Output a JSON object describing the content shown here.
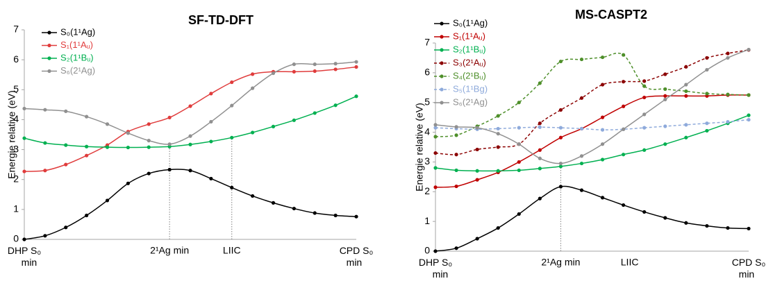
{
  "chart_data": [
    {
      "type": "line",
      "title": "SF-TD-DFT",
      "ylabel": "Energie relative (eV)",
      "x": [
        0,
        1,
        2,
        3,
        4,
        5,
        6,
        7,
        8,
        9,
        10,
        11,
        12,
        13,
        14,
        15,
        16
      ],
      "xlim": [
        0,
        16
      ],
      "xticks": [
        {
          "value": 0,
          "label": "DHP S₀ min"
        },
        {
          "value": 7,
          "label": "2¹Ag min"
        },
        {
          "value": 10,
          "label": "LIIC"
        },
        {
          "value": 16,
          "label": "CPD S₀ min"
        }
      ],
      "ylim": [
        0,
        7
      ],
      "yticks": [
        0,
        1,
        2,
        3,
        4,
        5,
        6,
        7
      ],
      "series": [
        {
          "name": "S₀(1¹Ag)",
          "color": "#000000",
          "dashed": false,
          "values": [
            0,
            0.12,
            0.4,
            0.8,
            1.3,
            1.87,
            2.2,
            2.33,
            2.3,
            2.03,
            1.73,
            1.45,
            1.22,
            1.03,
            0.88,
            0.8,
            0.76
          ]
        },
        {
          "name": "S₁(1¹Aᵤ)",
          "color": "#e03c3c",
          "dashed": false,
          "values": [
            2.27,
            2.3,
            2.5,
            2.8,
            3.15,
            3.6,
            3.85,
            4.07,
            4.45,
            4.87,
            5.25,
            5.52,
            5.6,
            5.6,
            5.62,
            5.68,
            5.76
          ]
        },
        {
          "name": "S₂(1¹Bᵤ)",
          "color": "#00b050",
          "dashed": false,
          "values": [
            3.38,
            3.22,
            3.15,
            3.1,
            3.08,
            3.07,
            3.08,
            3.1,
            3.17,
            3.27,
            3.4,
            3.57,
            3.77,
            3.98,
            4.22,
            4.48,
            4.78
          ]
        },
        {
          "name": "S₆(2¹Ag)",
          "color": "#909090",
          "dashed": false,
          "values": [
            4.37,
            4.33,
            4.28,
            4.1,
            3.85,
            3.55,
            3.3,
            3.18,
            3.45,
            3.93,
            4.47,
            5.05,
            5.55,
            5.85,
            5.85,
            5.87,
            5.93
          ]
        }
      ]
    },
    {
      "type": "line",
      "title": "MS-CASPT2",
      "ylabel": "Energie relative (eV)",
      "x": [
        0,
        1,
        2,
        3,
        4,
        5,
        6,
        7,
        8,
        9,
        10,
        11,
        12,
        13,
        14,
        15
      ],
      "xlim": [
        0,
        15
      ],
      "xticks": [
        {
          "value": 0,
          "label": "DHP S₀ min"
        },
        {
          "value": 6,
          "label": "2¹Ag min"
        },
        {
          "value": 9.3,
          "label": "LIIC"
        },
        {
          "value": 15,
          "label": "CPD S₀ min"
        }
      ],
      "ylim": [
        0,
        7
      ],
      "yticks": [
        0,
        1,
        2,
        3,
        4,
        5,
        6,
        7
      ],
      "series": [
        {
          "name": "S₀(1¹Ag)",
          "color": "#000000",
          "dashed": false,
          "values": [
            0,
            0.1,
            0.42,
            0.78,
            1.25,
            1.77,
            2.17,
            2.05,
            1.8,
            1.55,
            1.32,
            1.12,
            0.95,
            0.85,
            0.78,
            0.76
          ]
        },
        {
          "name": "S₁(1¹Aᵤ)",
          "color": "#c00000",
          "dashed": false,
          "values": [
            2.15,
            2.18,
            2.4,
            2.65,
            3.0,
            3.4,
            3.82,
            4.12,
            4.5,
            4.87,
            5.17,
            5.22,
            5.22,
            5.22,
            5.25,
            5.25
          ]
        },
        {
          "name": "S₂(1¹Bᵤ)",
          "color": "#00b050",
          "dashed": false,
          "values": [
            2.8,
            2.72,
            2.7,
            2.7,
            2.72,
            2.78,
            2.85,
            2.95,
            3.08,
            3.25,
            3.4,
            3.6,
            3.82,
            4.05,
            4.3,
            4.57
          ]
        },
        {
          "name": "S₃(2¹Aᵤ)",
          "color": "#8b0000",
          "dashed": true,
          "values": [
            3.3,
            3.25,
            3.42,
            3.5,
            3.6,
            4.3,
            4.75,
            5.15,
            5.6,
            5.7,
            5.72,
            5.95,
            6.2,
            6.5,
            6.65,
            6.77
          ]
        },
        {
          "name": "S₄(2¹Bᵤ)",
          "color": "#4e8f2a",
          "dashed": true,
          "values": [
            3.85,
            3.9,
            4.2,
            4.55,
            5.0,
            5.65,
            6.38,
            6.45,
            6.52,
            6.6,
            5.55,
            5.45,
            5.38,
            5.3,
            5.27,
            5.25
          ]
        },
        {
          "name": "S₅(1¹Bg)",
          "color": "#8eaadb",
          "dashed": true,
          "values": [
            4.15,
            4.12,
            4.1,
            4.12,
            4.15,
            4.17,
            4.15,
            4.12,
            4.08,
            4.1,
            4.15,
            4.2,
            4.25,
            4.3,
            4.35,
            4.42
          ]
        },
        {
          "name": "S₆(2¹Ag)",
          "color": "#909090",
          "dashed": false,
          "values": [
            4.25,
            4.18,
            4.15,
            3.95,
            3.6,
            3.12,
            2.95,
            3.2,
            3.6,
            4.1,
            4.6,
            5.1,
            5.6,
            6.1,
            6.5,
            6.78
          ]
        }
      ]
    }
  ]
}
